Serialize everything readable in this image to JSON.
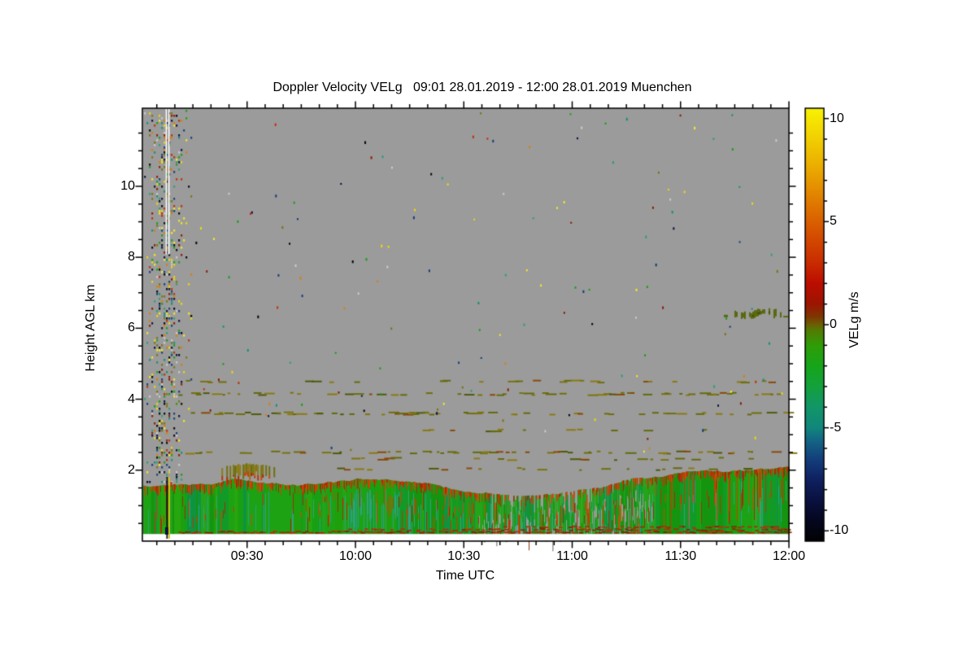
{
  "title": "Doppler Velocity VELg   09:01 28.01.2019 - 12:00 28.01.2019 Muenchen",
  "station": "Muenchen",
  "colors": {
    "page_background": "#ffffff",
    "plot_background": "#9b9b9b",
    "frame": "#000000",
    "text": "#000000",
    "no_echo_gray": "#9b9b9b",
    "gap_white": "#ffffff"
  },
  "axes": {
    "x": {
      "label": "Time UTC",
      "start": "09:01",
      "end": "12:00",
      "start_min": 0,
      "end_min": 179,
      "major_ticks": [
        {
          "label": "09:30",
          "minute": 29
        },
        {
          "label": "10:00",
          "minute": 59
        },
        {
          "label": "10:30",
          "minute": 89
        },
        {
          "label": "11:00",
          "minute": 119
        },
        {
          "label": "11:30",
          "minute": 149
        },
        {
          "label": "12:00",
          "minute": 179
        }
      ],
      "minor_step_min": 5
    },
    "y": {
      "label": "Height AGL km",
      "range_km": [
        0,
        12.2
      ],
      "major_ticks": [
        {
          "label": "2",
          "km": 2
        },
        {
          "label": "4",
          "km": 4
        },
        {
          "label": "6",
          "km": 6
        },
        {
          "label": "8",
          "km": 8
        },
        {
          "label": "10",
          "km": 10
        }
      ],
      "minor_step_km": 0.5
    }
  },
  "colorbar": {
    "label": "VELg m/s",
    "range": [
      -10.5,
      10.5
    ],
    "major_ticks": [
      {
        "label": "10",
        "value": 10
      },
      {
        "label": "5",
        "value": 5
      },
      {
        "label": "0",
        "value": 0
      },
      {
        "label": "-5",
        "value": -5
      },
      {
        "label": "-10",
        "value": -10
      }
    ],
    "minor_step": 1,
    "gradient_stops": [
      [
        0.0,
        "#020204"
      ],
      [
        0.048,
        "#05071f"
      ],
      [
        0.095,
        "#0a1140"
      ],
      [
        0.143,
        "#0f2161"
      ],
      [
        0.19,
        "#133f7c"
      ],
      [
        0.238,
        "#136b85"
      ],
      [
        0.262,
        "#11877b"
      ],
      [
        0.31,
        "#129668"
      ],
      [
        0.357,
        "#14a13c"
      ],
      [
        0.405,
        "#16a51a"
      ],
      [
        0.452,
        "#2f9d07"
      ],
      [
        0.486,
        "#527c04"
      ],
      [
        0.5,
        "#6b5f04"
      ],
      [
        0.519,
        "#7f3503"
      ],
      [
        0.548,
        "#9c1501"
      ],
      [
        0.595,
        "#bc0d00"
      ],
      [
        0.643,
        "#c92c00"
      ],
      [
        0.714,
        "#d65200"
      ],
      [
        0.786,
        "#e07c00"
      ],
      [
        0.857,
        "#eaa800"
      ],
      [
        0.929,
        "#f2cf02"
      ],
      [
        1.0,
        "#f8f202"
      ]
    ]
  },
  "chart_data": {
    "type": "heatmap",
    "title": "Doppler Velocity VELg   09:01 28.01.2019 - 12:00 28.01.2019 Muenchen",
    "xlabel": "Time UTC",
    "ylabel": "Height AGL km",
    "zlabel": "VELg m/s",
    "x_range": [
      "09:01 28.01.2019",
      "12:00 28.01.2019"
    ],
    "y_range_km": [
      0,
      12.2
    ],
    "z_range_ms": [
      -10.5,
      10.5
    ],
    "background_means": "gray = no echo / no data",
    "palette": {
      "green": [
        "#17a013",
        "#1f9f0c",
        "#129a28",
        "#26a70e",
        "#15950f",
        "#24a31c",
        "#0e9440",
        "#1da214"
      ],
      "teal": [
        "#2f9e86",
        "#27a08d",
        "#35a27c"
      ],
      "red": [
        "#b53608",
        "#c33c06",
        "#a32b05",
        "#ce4204",
        "#95350c",
        "#c24f08"
      ],
      "olive": [
        "#6f6f0e",
        "#7b7410",
        "#656b0c",
        "#8a7a12"
      ],
      "cloud_olive": "#5a690e",
      "ground_red": [
        "#8a2206",
        "#a03008",
        "#b03408"
      ],
      "noise": [
        "#ecd90a",
        "#d97f05",
        "#c22f04",
        "#8c1c02",
        "#129079",
        "#123f7c",
        "#0a1140",
        "#05050c",
        "#19a012",
        "#2f9e74",
        "#7b7410",
        "#f4ea25",
        "#cccccc"
      ]
    },
    "features": {
      "noise_column": {
        "t_min": [
          0.5,
          12
        ],
        "h_km": [
          0,
          12.2
        ],
        "desc": "random multi-colored speckle noise at start of record over all heights",
        "white_line_t_min": 7.0,
        "white_line_h_km": [
          8.1,
          12.2
        ]
      },
      "boundary_layer": {
        "t_min": [
          0,
          179
        ],
        "base_km": 0.2,
        "top_km_points": [
          [
            0,
            1.58
          ],
          [
            15,
            1.5
          ],
          [
            25,
            1.62
          ],
          [
            40,
            1.56
          ],
          [
            58,
            1.72
          ],
          [
            75,
            1.68
          ],
          [
            84,
            1.55
          ],
          [
            93,
            1.42
          ],
          [
            110,
            1.4
          ],
          [
            125,
            1.5
          ],
          [
            141,
            1.72
          ],
          [
            155,
            1.92
          ],
          [
            168,
            1.95
          ],
          [
            179,
            1.98
          ]
        ],
        "broken_t_min": [
          93,
          141
        ],
        "teal_t_min": [
          55,
          80
        ],
        "desc": "aerosol/boundary-layer echo, mostly -3..-1 m/s (green/teal) with +1..+5 m/s red streaks; broken with gray gaps 10:34-11:22"
      },
      "capping_blob": {
        "t_min": [
          21,
          37
        ],
        "h_km": [
          1.9,
          2.15
        ],
        "value_ms": 0,
        "desc": "dark-olive patch capping the layer near 09:30"
      },
      "cloud_patch": {
        "t_min": [
          163,
          177
        ],
        "h_km": [
          6.28,
          6.52
        ],
        "value_ms": 0,
        "desc": "thin mid-level cloud echo near 11:50 at 6.4 km"
      },
      "streak_lines": [
        {
          "km": 4.52,
          "t_min": [
            10,
            179
          ],
          "density": 0.22
        },
        {
          "km": 4.17,
          "t_min": [
            10,
            179
          ],
          "density": 0.4
        },
        {
          "km": 3.62,
          "t_min": [
            12,
            179
          ],
          "density": 0.5
        },
        {
          "km": 3.14,
          "t_min": [
            60,
            179
          ],
          "density": 0.15
        },
        {
          "km": 2.52,
          "t_min": [
            10,
            179
          ],
          "density": 0.45
        },
        {
          "km": 2.34,
          "t_min": [
            40,
            179
          ],
          "density": 0.18
        },
        {
          "km": 2.05,
          "t_min": [
            50,
            170
          ],
          "density": 0.25
        }
      ],
      "ground_lines": [
        {
          "km": 0.27,
          "t_min": [
            10,
            179
          ],
          "density": 0.75
        },
        {
          "km": 0.34,
          "t_min": [
            57,
            179
          ],
          "density": 0.6
        },
        {
          "km": 0.42,
          "t_min": [
            100,
            179
          ],
          "density": 0.45
        }
      ],
      "clear_strip_km": [
        0,
        0.2
      ],
      "scatter_dots": {
        "count": 150,
        "t_min": [
          13,
          179
        ],
        "h_km": [
          2.3,
          12.1
        ],
        "desc": "isolated single-pixel noise dots in gray area"
      }
    }
  }
}
